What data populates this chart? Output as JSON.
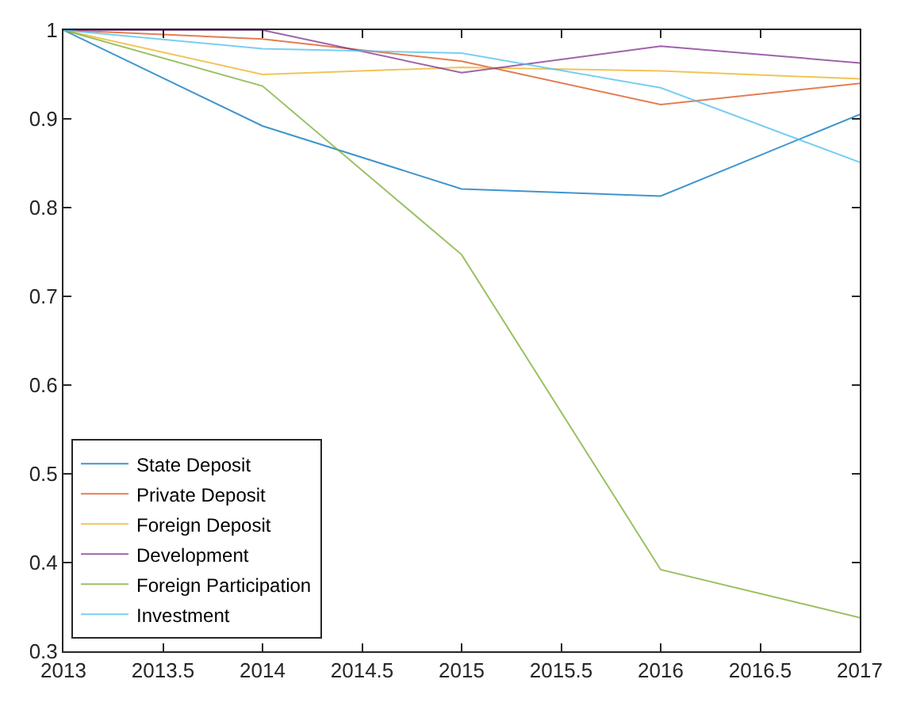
{
  "chart_data": {
    "type": "line",
    "x": [
      2013,
      2014,
      2015,
      2016,
      2017
    ],
    "series": [
      {
        "name": "State Deposit",
        "color": "#0072bd",
        "values": [
          1,
          0.892,
          0.821,
          0.813,
          0.905
        ]
      },
      {
        "name": "Private Deposit",
        "color": "#d95319",
        "values": [
          1,
          0.99,
          0.965,
          0.916,
          0.94
        ]
      },
      {
        "name": "Foreign Deposit",
        "color": "#edb120",
        "values": [
          1,
          0.95,
          0.958,
          0.954,
          0.945
        ]
      },
      {
        "name": "Development",
        "color": "#7e2f8e",
        "values": [
          1,
          1,
          0.952,
          0.982,
          0.963
        ]
      },
      {
        "name": "Foreign Participation",
        "color": "#77ac30",
        "values": [
          1,
          0.937,
          0.747,
          0.392,
          0.338
        ]
      },
      {
        "name": "Investment",
        "color": "#4dbeee",
        "values": [
          1,
          0.979,
          0.974,
          0.935,
          0.851
        ]
      }
    ],
    "xlim": [
      2013,
      2017
    ],
    "xticks": [
      2013,
      2013.5,
      2014,
      2014.5,
      2015,
      2015.5,
      2016,
      2016.5,
      2017
    ],
    "ylim": [
      0.3,
      1
    ],
    "yticks": [
      0.3,
      0.4,
      0.5,
      0.6,
      0.7,
      0.8,
      0.9,
      1
    ],
    "legend": "bottom left",
    "marker": "none",
    "line_style": "solid"
  }
}
